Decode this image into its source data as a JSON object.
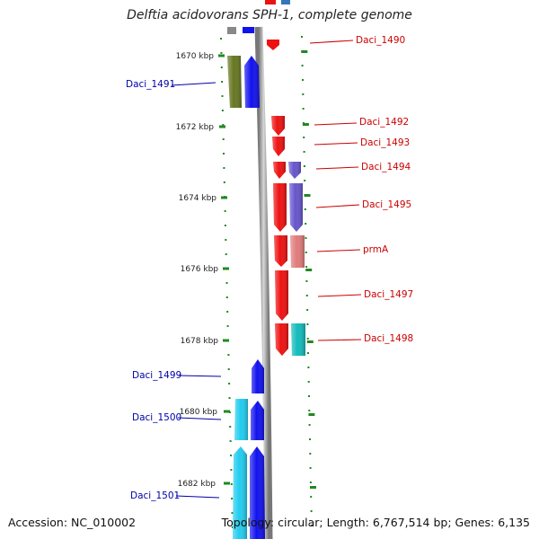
{
  "title": "Delftia acidovorans SPH-1, complete genome",
  "footer": {
    "accession": "Accession: NC_010002",
    "topology": "Topology: circular; Length: 6,767,514 bp; Genes: 6,135"
  },
  "ticks": [
    {
      "label": "1670 kbp"
    },
    {
      "label": "1672 kbp"
    },
    {
      "label": "1674 kbp"
    },
    {
      "label": "1676 kbp"
    },
    {
      "label": "1678 kbp"
    },
    {
      "label": "1680 kbp"
    },
    {
      "label": "1682 kbp"
    }
  ],
  "genes": [
    {
      "label": "Daci_1490",
      "strand": "forward",
      "color": "#ee1111"
    },
    {
      "label": "Daci_1491",
      "strand": "reverse",
      "color": "#667722"
    },
    {
      "label": "Daci_1492",
      "strand": "forward",
      "color": "#ee1111"
    },
    {
      "label": "Daci_1493",
      "strand": "forward",
      "color": "#ee1111"
    },
    {
      "label": "Daci_1494",
      "strand": "forward",
      "color": "#6655cc"
    },
    {
      "label": "Daci_1495",
      "strand": "forward",
      "color": "#6655cc"
    },
    {
      "label": "prmA",
      "strand": "forward",
      "color": "#e07b7b"
    },
    {
      "label": "Daci_1497",
      "strand": "forward",
      "color": "#ee1111"
    },
    {
      "label": "Daci_1498",
      "strand": "forward",
      "color": "#11bbbb"
    },
    {
      "label": "Daci_1499",
      "strand": "reverse",
      "color": "#1111ee"
    },
    {
      "label": "Daci_1500",
      "strand": "reverse",
      "color": "#22ccee"
    },
    {
      "label": "Daci_1501",
      "strand": "reverse",
      "color": "#22ccee"
    }
  ],
  "colors": {
    "forward_label": "#cc0000",
    "reverse_label": "#0000aa",
    "tick": "#228822",
    "backbone": "#999999"
  }
}
